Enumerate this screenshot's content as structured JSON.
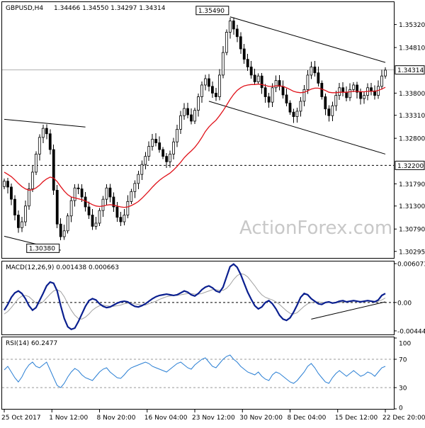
{
  "header": {
    "symbol": "GBPUSD,H4",
    "ohlc": "1.34466 1.34550 1.34297 1.34314"
  },
  "watermark": "ActionForex.com",
  "colors": {
    "ma": "#e0121a",
    "macd_main": "#0a1f8f",
    "macd_signal": "#a0a0a0",
    "rsi": "#2a7fd4",
    "candles": "#000000",
    "trendlines": "#000000"
  },
  "chart_data": [
    {
      "type": "candlestick",
      "title": "GBPUSD,H4",
      "ohlc_text": "1.34466 1.34550 1.34297 1.34314",
      "ylim": [
        1.3015,
        1.358
      ],
      "y_ticks": [
        "1.35320",
        "1.34810",
        "1.34314",
        "1.33800",
        "1.33310",
        "1.32800",
        "1.32200",
        "1.31790",
        "1.31300",
        "1.30790",
        "1.30295"
      ],
      "current_price": "1.34314",
      "support_level": "1.32200",
      "annotations": [
        {
          "text": "1.35490",
          "index": 64,
          "value": 1.3549
        },
        {
          "text": "1.30380",
          "index": 16,
          "value": 1.3038
        }
      ],
      "close": [
        1.3185,
        1.3172,
        1.3145,
        1.311,
        1.3082,
        1.3095,
        1.313,
        1.3168,
        1.3205,
        1.3245,
        1.3282,
        1.3302,
        1.329,
        1.3255,
        1.3165,
        1.309,
        1.3062,
        1.3075,
        1.3108,
        1.3142,
        1.317,
        1.3168,
        1.315,
        1.3128,
        1.311,
        1.3085,
        1.3092,
        1.312,
        1.3145,
        1.317,
        1.315,
        1.3128,
        1.3105,
        1.3095,
        1.311,
        1.314,
        1.3162,
        1.318,
        1.32,
        1.3222,
        1.324,
        1.3262,
        1.3278,
        1.327,
        1.3255,
        1.324,
        1.3228,
        1.3245,
        1.3272,
        1.33,
        1.333,
        1.3346,
        1.3332,
        1.3318,
        1.3342,
        1.3372,
        1.3398,
        1.3412,
        1.3395,
        1.338,
        1.3372,
        1.342,
        1.347,
        1.3515,
        1.354,
        1.3522,
        1.3505,
        1.3478,
        1.3455,
        1.3438,
        1.342,
        1.3405,
        1.3418,
        1.3392,
        1.3372,
        1.336,
        1.3392,
        1.3408,
        1.3395,
        1.3376,
        1.3358,
        1.3338,
        1.3328,
        1.334,
        1.3362,
        1.3388,
        1.342,
        1.3438,
        1.3425,
        1.3402,
        1.3372,
        1.3345,
        1.333,
        1.3352,
        1.3375,
        1.3392,
        1.3382,
        1.337,
        1.3388,
        1.3398,
        1.3382,
        1.3368,
        1.3375,
        1.3392,
        1.3385,
        1.3375,
        1.3395,
        1.3418,
        1.3431
      ],
      "ma": [
        1.3205,
        1.32,
        1.3195,
        1.3188,
        1.318,
        1.3173,
        1.3168,
        1.3165,
        1.3166,
        1.317,
        1.3176,
        1.3184,
        1.319,
        1.3194,
        1.3192,
        1.3184,
        1.3173,
        1.3163,
        1.3155,
        1.315,
        1.3148,
        1.3146,
        1.3144,
        1.3141,
        1.3137,
        1.3133,
        1.313,
        1.3129,
        1.313,
        1.3132,
        1.3133,
        1.3132,
        1.313,
        1.3128,
        1.3127,
        1.3128,
        1.3131,
        1.3135,
        1.314,
        1.3147,
        1.3155,
        1.3163,
        1.3172,
        1.318,
        1.3187,
        1.3193,
        1.3198,
        1.3203,
        1.321,
        1.3218,
        1.3227,
        1.3237,
        1.3245,
        1.3252,
        1.326,
        1.327,
        1.3282,
        1.3295,
        1.3305,
        1.3313,
        1.332,
        1.333,
        1.3341,
        1.3353,
        1.3366,
        1.3377,
        1.3386,
        1.3392,
        1.3396,
        1.3398,
        1.3399,
        1.3399,
        1.34,
        1.3399,
        1.3397,
        1.3395,
        1.3395,
        1.3396,
        1.3396,
        1.3395,
        1.3392,
        1.3388,
        1.3384,
        1.3382,
        1.3381,
        1.3382,
        1.3385,
        1.3389,
        1.3391,
        1.3391,
        1.3389,
        1.3386,
        1.3382,
        1.3381,
        1.3381,
        1.3382,
        1.3382,
        1.3382,
        1.3383,
        1.3384,
        1.3384,
        1.3383,
        1.3383,
        1.3384,
        1.3384,
        1.3384,
        1.3386,
        1.3389,
        1.3393
      ],
      "trendlines": [
        {
          "x1": 0,
          "y1": 1.3322,
          "x2": 23,
          "y2": 1.3305
        },
        {
          "x1": 0,
          "y1": 1.3063,
          "x2": 16,
          "y2": 1.3032
        },
        {
          "x1": 64,
          "y1": 1.3549,
          "x2": 108,
          "y2": 1.3448
        },
        {
          "x1": 58,
          "y1": 1.3362,
          "x2": 108,
          "y2": 1.3245
        }
      ]
    },
    {
      "type": "line",
      "title": "MACD(12,26,9) 0.001438 0.000663",
      "ylim": [
        -0.005,
        0.0063
      ],
      "y_ticks": [
        "0.006073",
        "0.00",
        "-0.004441"
      ],
      "series": [
        {
          "name": "main",
          "values": [
            -0.0012,
            -0.0003,
            0.0008,
            0.0015,
            0.0018,
            0.0014,
            0.0006,
            -0.0005,
            -0.0012,
            -0.0008,
            0.0003,
            0.0014,
            0.0026,
            0.0032,
            0.003,
            0.0018,
            -0.0005,
            -0.0025,
            -0.0038,
            -0.0042,
            -0.004,
            -0.003,
            -0.0018,
            -0.0006,
            0.0003,
            0.0006,
            0.0004,
            -0.0002,
            -0.0006,
            -0.0008,
            -0.0007,
            -0.0004,
            -0.0001,
            0.0001,
            0.0002,
            0.0001,
            -0.0003,
            -0.0006,
            -0.0007,
            -0.0005,
            -0.0002,
            0.0002,
            0.0006,
            0.0009,
            0.0011,
            0.0012,
            0.0013,
            0.0012,
            0.0011,
            0.0012,
            0.0015,
            0.0018,
            0.0016,
            0.0012,
            0.001,
            0.0014,
            0.002,
            0.0024,
            0.0026,
            0.0023,
            0.0018,
            0.0016,
            0.0024,
            0.004,
            0.0056,
            0.006,
            0.0055,
            0.0044,
            0.003,
            0.0016,
            0.0005,
            -0.0005,
            -0.001,
            -0.0007,
            0.0,
            0.0003,
            -0.0002,
            -0.001,
            -0.002,
            -0.0026,
            -0.0028,
            -0.0024,
            -0.0015,
            -0.0004,
            0.0008,
            0.0014,
            0.0012,
            0.0006,
            0.0002,
            -0.0002,
            -0.0003,
            0.0,
            0.0001,
            -0.0001,
            0.0,
            0.0002,
            0.0003,
            0.0001,
            0.0002,
            0.0003,
            0.0002,
            0.0001,
            0.0002,
            0.0003,
            0.0002,
            0.0001,
            0.0004,
            0.0011,
            0.0014
          ]
        },
        {
          "name": "signal",
          "values": [
            -0.0018,
            -0.0014,
            -0.0008,
            -0.0001,
            0.0006,
            0.001,
            0.0011,
            0.0009,
            0.0004,
            -0.0001,
            -0.0002,
            0.0001,
            0.0007,
            0.0013,
            0.0018,
            0.002,
            0.0017,
            0.0009,
            -0.0002,
            -0.0012,
            -0.002,
            -0.0025,
            -0.0026,
            -0.0023,
            -0.0018,
            -0.0012,
            -0.0008,
            -0.0005,
            -0.0004,
            -0.0005,
            -0.0006,
            -0.0006,
            -0.0005,
            -0.0004,
            -0.0002,
            -0.0001,
            -0.0001,
            -0.0002,
            -0.0003,
            -0.0004,
            -0.0004,
            -0.0002,
            0.0,
            0.0002,
            0.0005,
            0.0007,
            0.0009,
            0.001,
            0.0011,
            0.0011,
            0.0012,
            0.0013,
            0.0014,
            0.0014,
            0.0013,
            0.0013,
            0.0014,
            0.0016,
            0.0018,
            0.002,
            0.002,
            0.0019,
            0.0019,
            0.0022,
            0.0028,
            0.0036,
            0.0042,
            0.0045,
            0.0044,
            0.004,
            0.0033,
            0.0026,
            0.0018,
            0.0012,
            0.0008,
            0.0006,
            0.0004,
            0.0001,
            -0.0003,
            -0.0008,
            -0.0013,
            -0.0017,
            -0.0018,
            -0.0016,
            -0.0011,
            -0.0006,
            -0.0002,
            0.0,
            0.0001,
            0.0001,
            0.0,
            0.0,
            0.0,
            0.0,
            0.0,
            0.0,
            0.0001,
            0.0001,
            0.0001,
            0.0002,
            0.0002,
            0.0002,
            0.0002,
            0.0002,
            0.0002,
            0.0002,
            0.0002,
            0.0004,
            0.0007
          ]
        }
      ],
      "trendline": {
        "x1": 87,
        "y1": -0.0026,
        "x2": 108,
        "y2": 0.0001
      }
    },
    {
      "type": "line",
      "title": "RSI(14) 60.2477",
      "ylim": [
        0,
        100
      ],
      "y_ticks": [
        "100",
        "70",
        "30",
        "0"
      ],
      "levels": [
        70,
        30
      ],
      "series": [
        {
          "name": "RSI",
          "values": [
            55,
            60,
            52,
            44,
            38,
            45,
            55,
            62,
            66,
            60,
            58,
            62,
            66,
            55,
            44,
            33,
            30,
            36,
            45,
            52,
            57,
            54,
            48,
            44,
            42,
            40,
            46,
            52,
            56,
            58,
            52,
            48,
            44,
            43,
            48,
            54,
            58,
            60,
            62,
            64,
            66,
            64,
            60,
            58,
            56,
            54,
            52,
            56,
            60,
            64,
            66,
            62,
            58,
            56,
            62,
            66,
            70,
            72,
            66,
            60,
            58,
            64,
            70,
            74,
            76,
            70,
            66,
            60,
            56,
            52,
            50,
            48,
            52,
            46,
            42,
            40,
            48,
            52,
            50,
            46,
            42,
            38,
            36,
            40,
            46,
            52,
            60,
            64,
            58,
            50,
            44,
            38,
            36,
            44,
            50,
            54,
            50,
            46,
            50,
            54,
            50,
            46,
            48,
            52,
            50,
            46,
            52,
            58,
            60
          ]
        }
      ]
    }
  ],
  "x_axis": {
    "tick_labels": [
      "25 Oct 2017",
      "1 Nov 12:00",
      "8 Nov 20:00",
      "16 Nov 04:00",
      "23 Nov 12:00",
      "30 Nov 20:00",
      "8 Dec 04:00",
      "15 Dec 12:00",
      "22 Dec 20:00"
    ]
  }
}
